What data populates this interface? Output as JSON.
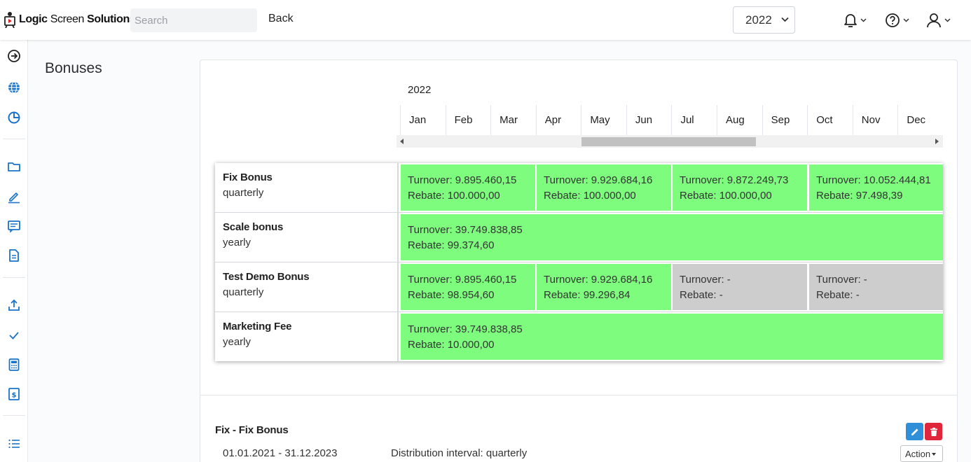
{
  "header": {
    "logo": {
      "part1": "Logic",
      "part2": " Screen ",
      "part3": "Solutions"
    },
    "search_placeholder": "Search",
    "back_label": "Back",
    "year_selected": "2022",
    "icons": [
      "bell-icon",
      "help-icon",
      "user-icon"
    ]
  },
  "rail": {
    "icons": [
      "arrow-right-circle-icon",
      "globe-icon",
      "pie-chart-icon",
      "folder-icon",
      "pencil-icon",
      "message-icon",
      "document-icon",
      "upload-icon",
      "check-icon",
      "calculator-icon",
      "invoice-icon",
      "list-icon"
    ]
  },
  "page": {
    "title": "Bonuses"
  },
  "timeline": {
    "year": "2022",
    "months": [
      "Jan",
      "Feb",
      "Mar",
      "Apr",
      "May",
      "Jun",
      "Jul",
      "Aug",
      "Sep",
      "Oct",
      "Nov",
      "Dec"
    ]
  },
  "bonuses": [
    {
      "name": "Fix Bonus",
      "interval": "quarterly",
      "cells": [
        {
          "turnover": "Turnover: 9.895.460,15",
          "rebate": "Rebate: 100.000,00",
          "status": "green"
        },
        {
          "turnover": "Turnover: 9.929.684,16",
          "rebate": "Rebate: 100.000,00",
          "status": "green"
        },
        {
          "turnover": "Turnover: 9.872.249,73",
          "rebate": "Rebate: 100.000,00",
          "status": "green"
        },
        {
          "turnover": "Turnover: 10.052.444,81",
          "rebate": "Rebate: 97.498,39",
          "status": "green"
        }
      ]
    },
    {
      "name": "Scale bonus",
      "interval": "yearly",
      "cells": [
        {
          "turnover": "Turnover: 39.749.838,85",
          "rebate": "Rebate: 99.374,60",
          "status": "green"
        }
      ]
    },
    {
      "name": "Test Demo Bonus",
      "interval": "quarterly",
      "cells": [
        {
          "turnover": "Turnover: 9.895.460,15",
          "rebate": "Rebate: 98.954,60",
          "status": "green"
        },
        {
          "turnover": "Turnover: 9.929.684,16",
          "rebate": "Rebate: 99.296,84",
          "status": "green"
        },
        {
          "turnover": "Turnover: -",
          "rebate": "Rebate: -",
          "status": "grey"
        },
        {
          "turnover": "Turnover: -",
          "rebate": "Rebate: -",
          "status": "grey"
        }
      ]
    },
    {
      "name": "Marketing Fee",
      "interval": "yearly",
      "cells": [
        {
          "turnover": "Turnover: 39.749.838,85",
          "rebate": "Rebate: 10.000,00",
          "status": "green"
        }
      ]
    }
  ],
  "detail": {
    "name": "Fix - Fix Bonus",
    "dates": "01.01.2021 - 31.12.2023",
    "interval": "Distribution interval: quarterly",
    "action_label": "Action"
  },
  "colors": {
    "green": "#7dfc7d",
    "grey": "#cdcdcd",
    "accent": "#2f8fd8",
    "danger": "#e0263a",
    "rail_icon": "#1a73c9"
  }
}
